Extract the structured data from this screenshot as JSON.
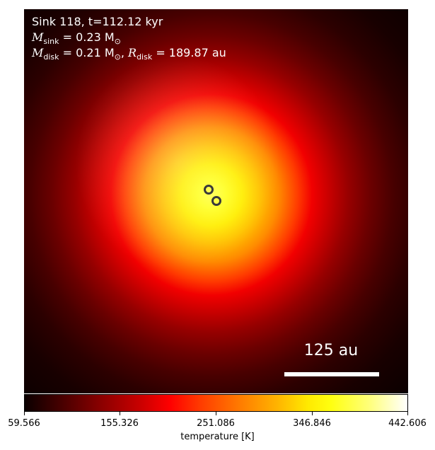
{
  "annotation": {
    "line1": "Sink 118, t=112.12 kyr",
    "line2_symbol": "M",
    "line2_sub": "sink",
    "line2_value": "= 0.23 M",
    "line2_unit_sub": "⊙",
    "line3_symbol": "M",
    "line3_sub": "disk",
    "line3_value": "= 0.21 M",
    "line3_unit_sub": "⊙",
    "line3_sep": ", ",
    "line3_symbol2": "R",
    "line3_sub2": "disk",
    "line3_value2": "= 189.87 au"
  },
  "scale_bar": {
    "label": "125 au"
  },
  "colorbar": {
    "label": "temperature [K]",
    "colormap": "hot",
    "ticks": [
      "59.566",
      "155.326",
      "251.086",
      "346.846",
      "442.606"
    ]
  }
}
